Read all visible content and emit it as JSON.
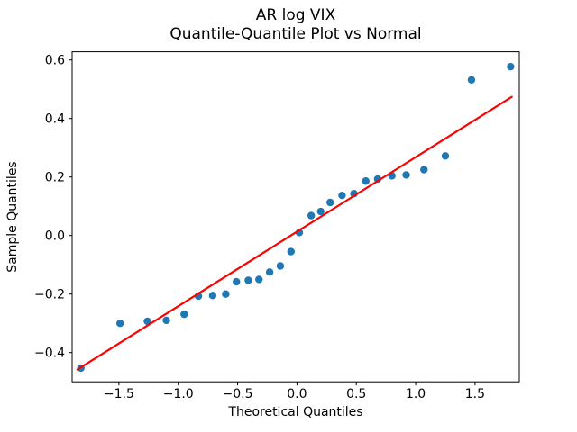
{
  "figure": {
    "title_line1": "AR log VIX",
    "title_line2": "Quantile-Quantile Plot vs Normal",
    "xlabel": "Theoretical Quantiles",
    "ylabel": "Sample Quantiles"
  },
  "colors": {
    "marker": "#1f77b4",
    "fit_line": "#ff0000",
    "axis": "#000000",
    "background": "#ffffff",
    "text": "#000000"
  },
  "chart_data": {
    "type": "scatter",
    "title": "AR log VIX\nQuantile-Quantile Plot vs Normal",
    "xlabel": "Theoretical Quantiles",
    "ylabel": "Sample Quantiles",
    "xlim": [
      -1.894,
      1.873
    ],
    "ylim": [
      -0.5,
      0.628
    ],
    "x_ticks": [
      -1.5,
      -1.0,
      -0.5,
      0.0,
      0.5,
      1.0,
      1.5
    ],
    "x_tick_labels": [
      "−1.5",
      "−1.0",
      "−0.5",
      "0.0",
      "0.5",
      "1.0",
      "1.5"
    ],
    "y_ticks": [
      -0.4,
      -0.2,
      0.0,
      0.2,
      0.4,
      0.6
    ],
    "y_tick_labels": [
      "−0.4",
      "−0.2",
      "0.0",
      "0.2",
      "0.4",
      "0.6"
    ],
    "grid": false,
    "legend": "none",
    "series": [
      {
        "name": "sample-quantile-points",
        "type": "scatter",
        "color": "#1f77b4",
        "points": [
          [
            -1.82,
            -0.453
          ],
          [
            -1.49,
            -0.3
          ],
          [
            -1.26,
            -0.293
          ],
          [
            -1.1,
            -0.29
          ],
          [
            -0.95,
            -0.269
          ],
          [
            -0.83,
            -0.207
          ],
          [
            -0.71,
            -0.205
          ],
          [
            -0.6,
            -0.2
          ],
          [
            -0.51,
            -0.158
          ],
          [
            -0.41,
            -0.153
          ],
          [
            -0.32,
            -0.15
          ],
          [
            -0.23,
            -0.125
          ],
          [
            -0.14,
            -0.104
          ],
          [
            -0.05,
            -0.055
          ],
          [
            0.02,
            0.01
          ],
          [
            0.12,
            0.068
          ],
          [
            0.2,
            0.082
          ],
          [
            0.28,
            0.113
          ],
          [
            0.38,
            0.137
          ],
          [
            0.48,
            0.143
          ],
          [
            0.58,
            0.186
          ],
          [
            0.68,
            0.193
          ],
          [
            0.8,
            0.204
          ],
          [
            0.92,
            0.207
          ],
          [
            1.07,
            0.225
          ],
          [
            1.25,
            0.272
          ],
          [
            1.47,
            0.532
          ],
          [
            1.8,
            0.577
          ]
        ]
      },
      {
        "name": "normal-reference-line",
        "type": "line",
        "color": "#ff0000",
        "points": [
          [
            -1.85,
            -0.458
          ],
          [
            1.81,
            0.474
          ]
        ]
      }
    ]
  }
}
